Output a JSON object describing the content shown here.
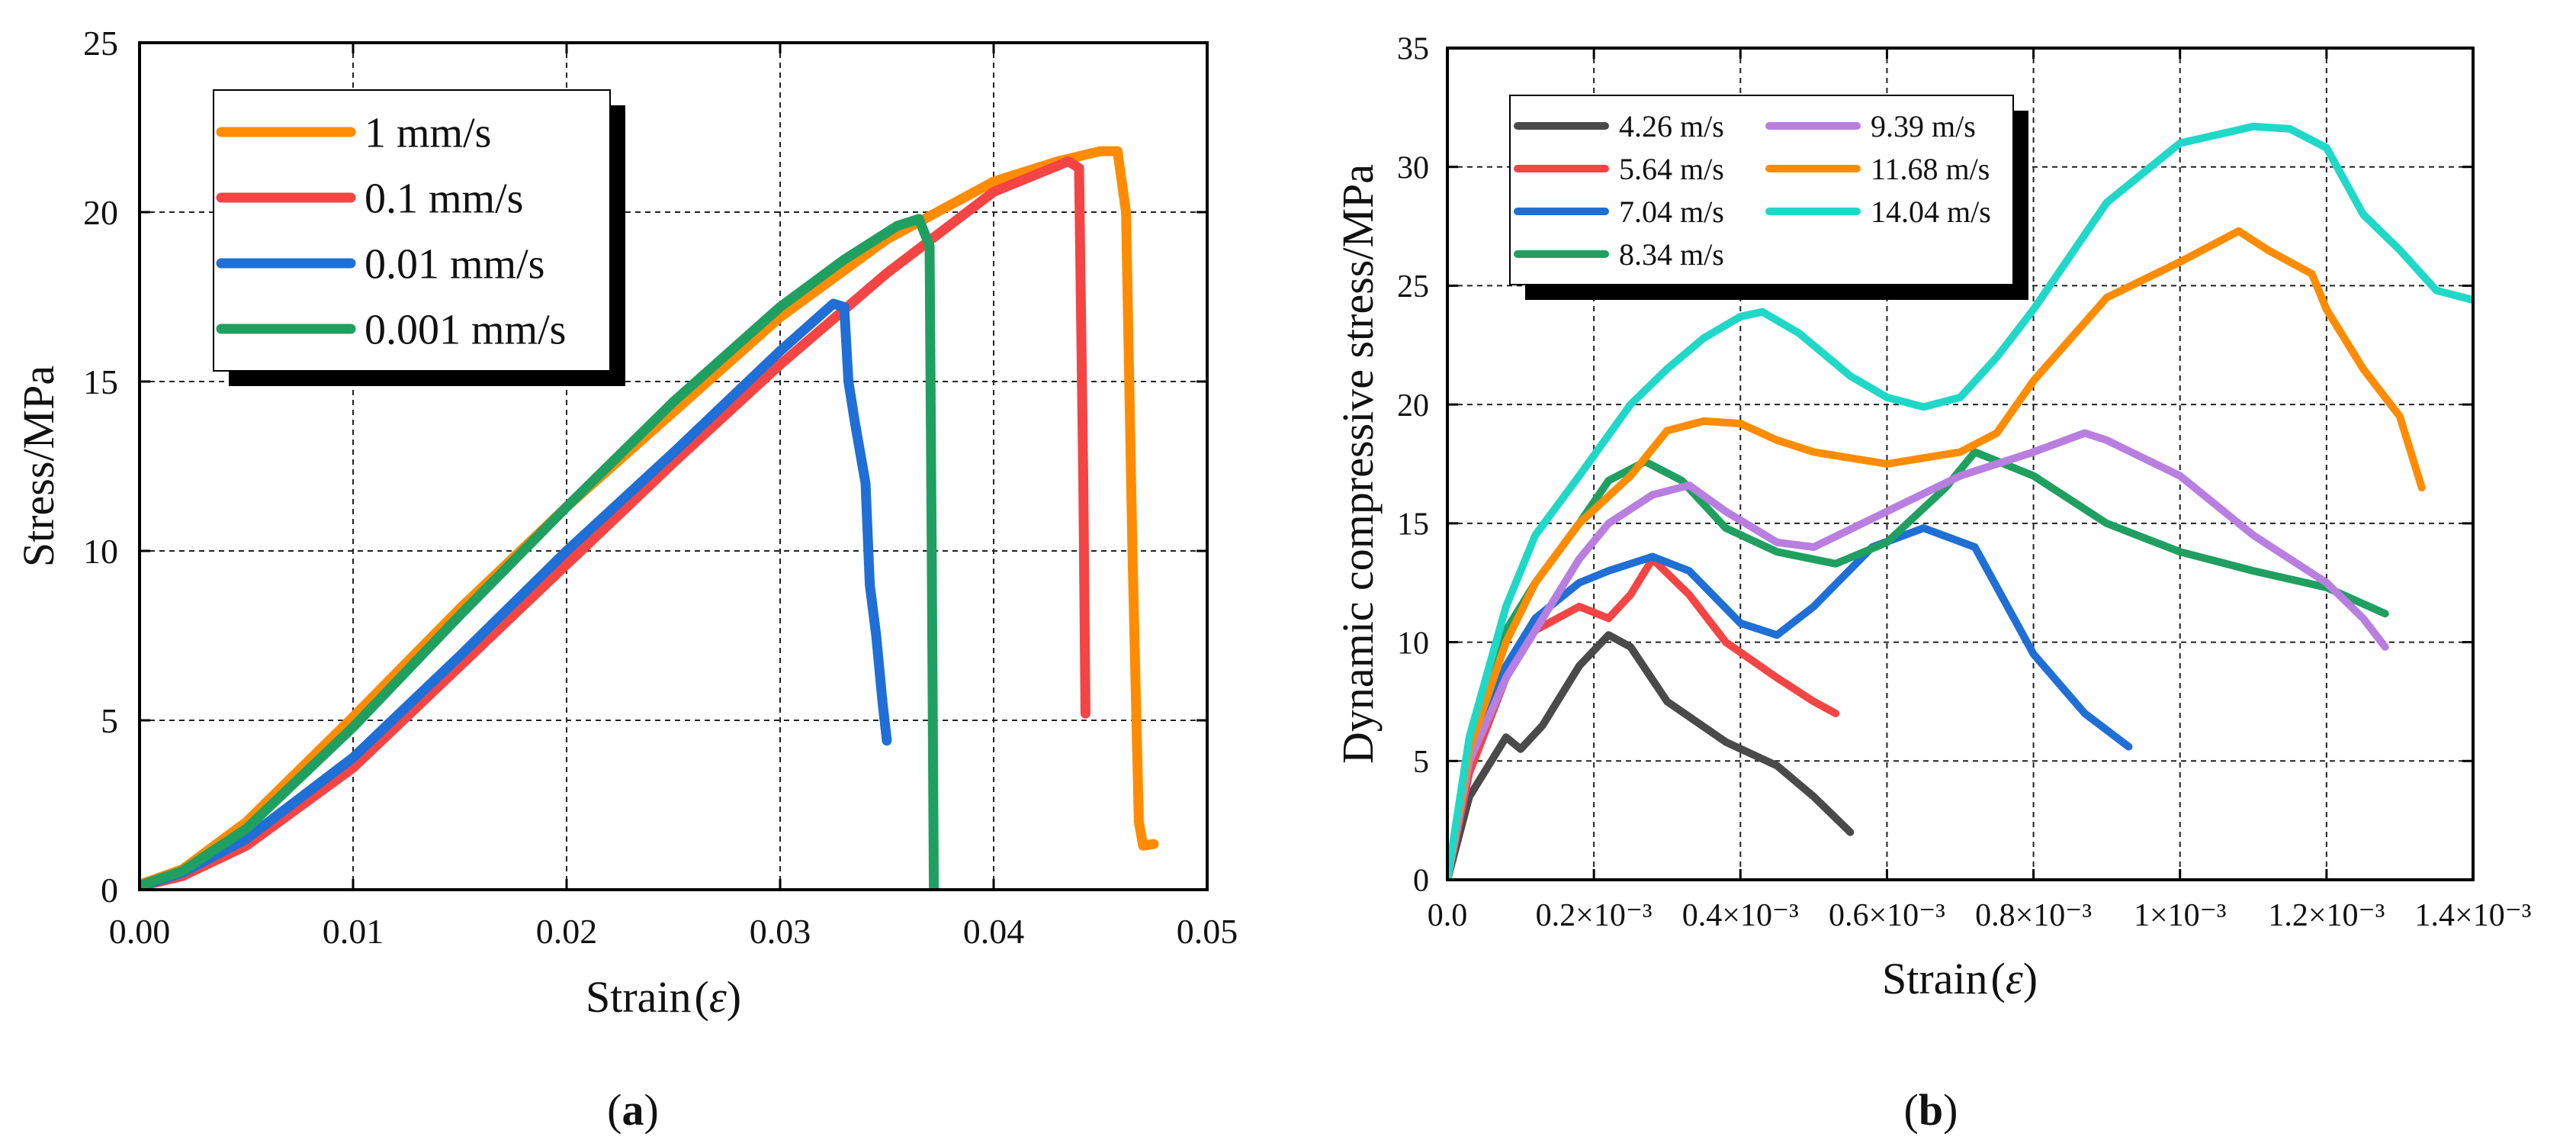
{
  "chart_data": [
    {
      "panel": "a",
      "type": "line",
      "caption_letter": "a",
      "xlabel": "Strain",
      "xlabel_symbol": "ε",
      "ylabel": "Stress/MPa",
      "xlim": [
        0,
        0.05
      ],
      "ylim": [
        0,
        25
      ],
      "xticks": [
        0,
        0.01,
        0.02,
        0.03,
        0.04,
        0.05
      ],
      "xtick_labels": [
        "0.00",
        "0.01",
        "0.02",
        "0.03",
        "0.04",
        "0.05"
      ],
      "yticks": [
        0,
        5,
        10,
        15,
        20,
        25
      ],
      "ytick_labels": [
        "0",
        "5",
        "10",
        "15",
        "20",
        "25"
      ],
      "grid": true,
      "legend_position": "top-left",
      "series": [
        {
          "name": "1 mm/s",
          "color": "#ff8c00",
          "x": [
            0,
            0.002,
            0.005,
            0.01,
            0.015,
            0.02,
            0.025,
            0.03,
            0.035,
            0.04,
            0.043,
            0.045,
            0.0458,
            0.0462,
            0.0465,
            0.0468,
            0.047,
            0.0475
          ],
          "y": [
            0.15,
            0.6,
            2.0,
            5.1,
            8.3,
            11.3,
            14.1,
            16.9,
            19.2,
            20.9,
            21.5,
            21.8,
            21.8,
            20.0,
            10.0,
            2.0,
            1.3,
            1.35
          ]
        },
        {
          "name": "0.1 mm/s",
          "color": "#f54444",
          "x": [
            0,
            0.002,
            0.005,
            0.01,
            0.015,
            0.02,
            0.025,
            0.03,
            0.035,
            0.04,
            0.0435,
            0.044,
            0.0442,
            0.0443
          ],
          "y": [
            0.1,
            0.4,
            1.3,
            3.6,
            6.6,
            9.6,
            12.6,
            15.5,
            18.2,
            20.6,
            21.5,
            21.3,
            12.0,
            5.2
          ]
        },
        {
          "name": "0.01 mm/s",
          "color": "#1f6fd6",
          "x": [
            0,
            0.002,
            0.005,
            0.01,
            0.015,
            0.02,
            0.025,
            0.03,
            0.0325,
            0.033,
            0.0332,
            0.0335,
            0.034,
            0.0342,
            0.0345,
            0.0348,
            0.035
          ],
          "y": [
            0.1,
            0.5,
            1.5,
            3.9,
            6.9,
            10.0,
            12.9,
            15.9,
            17.3,
            17.2,
            15.0,
            13.8,
            12.0,
            9.0,
            7.5,
            5.5,
            4.4
          ]
        },
        {
          "name": "0.001 mm/s",
          "color": "#1fa060",
          "x": [
            0,
            0.002,
            0.005,
            0.01,
            0.015,
            0.02,
            0.025,
            0.03,
            0.033,
            0.0355,
            0.0365,
            0.037,
            0.0371,
            0.0372
          ],
          "y": [
            0.12,
            0.55,
            1.8,
            4.8,
            8.1,
            11.3,
            14.4,
            17.2,
            18.6,
            19.6,
            19.8,
            19.0,
            10.0,
            0
          ]
        }
      ]
    },
    {
      "panel": "b",
      "type": "line",
      "caption_letter": "b",
      "xlabel": "Strain",
      "xlabel_symbol": "ε",
      "ylabel": "Dynamic compressive stress/MPa",
      "xlim": [
        0,
        0.0014
      ],
      "ylim": [
        0,
        35
      ],
      "xticks": [
        0,
        0.0002,
        0.0004,
        0.0006,
        0.0008,
        0.001,
        0.0012,
        0.0014
      ],
      "xtick_labels": [
        "0.0",
        "0.2×10⁻³",
        "0.4×10⁻³",
        "0.6×10⁻³",
        "0.8×10⁻³",
        "1×10⁻³",
        "1.2×10⁻³",
        "1.4×10⁻³"
      ],
      "yticks": [
        0,
        5,
        10,
        15,
        20,
        25,
        30,
        35
      ],
      "ytick_labels": [
        "0",
        "5",
        "10",
        "15",
        "20",
        "25",
        "30",
        "35"
      ],
      "grid": true,
      "legend_position": "top-left",
      "series": [
        {
          "name": "4.26 m/s",
          "color": "#4a4a4a",
          "x": [
            0,
            3e-05,
            8e-05,
            0.0001,
            0.00013,
            0.00018,
            0.00022,
            0.00025,
            0.0003,
            0.00038,
            0.00045,
            0.0005,
            0.00055
          ],
          "y": [
            0,
            3.5,
            6.0,
            5.5,
            6.5,
            9.0,
            10.3,
            9.8,
            7.5,
            5.8,
            4.8,
            3.5,
            2.0
          ]
        },
        {
          "name": "5.64 m/s",
          "color": "#f54444",
          "x": [
            0,
            3e-05,
            8e-05,
            0.00012,
            0.00018,
            0.00022,
            0.00025,
            0.00028,
            0.00033,
            0.00038,
            0.00045,
            0.0005,
            0.00053
          ],
          "y": [
            0,
            4.5,
            8.5,
            10.5,
            11.5,
            11.0,
            12.0,
            13.5,
            12.0,
            10.0,
            8.5,
            7.5,
            7.0
          ]
        },
        {
          "name": "7.04 m/s",
          "color": "#1f6fd6",
          "x": [
            0,
            3e-05,
            8e-05,
            0.00012,
            0.00018,
            0.00022,
            0.00028,
            0.00033,
            0.0004,
            0.00045,
            0.0005,
            0.00058,
            0.00065,
            0.00072,
            0.0008,
            0.00087,
            0.00093
          ],
          "y": [
            0,
            5.0,
            9.0,
            11.0,
            12.5,
            13.0,
            13.6,
            13.0,
            10.8,
            10.3,
            11.5,
            14.0,
            14.8,
            14.0,
            9.5,
            7.0,
            5.6
          ]
        },
        {
          "name": "8.34 m/s",
          "color": "#1fa060",
          "x": [
            0,
            3e-05,
            8e-05,
            0.00012,
            0.00018,
            0.00022,
            0.00027,
            0.00032,
            0.00038,
            0.00045,
            0.00053,
            0.0006,
            0.00068,
            0.00072,
            0.0008,
            0.0009,
            0.001,
            0.0011,
            0.0012,
            0.00128
          ],
          "y": [
            0,
            5.5,
            10.5,
            12.5,
            15.0,
            16.8,
            17.6,
            16.8,
            14.8,
            13.8,
            13.3,
            14.2,
            16.5,
            18.0,
            17.0,
            15.0,
            13.8,
            13.0,
            12.3,
            11.2
          ]
        },
        {
          "name": "9.39 m/s",
          "color": "#b87fe0",
          "x": [
            0,
            3e-05,
            8e-05,
            0.00012,
            0.00018,
            0.00022,
            0.00028,
            0.00033,
            0.00038,
            0.00045,
            0.0005,
            0.0006,
            0.0007,
            0.0008,
            0.00087,
            0.0009,
            0.001,
            0.0011,
            0.0012,
            0.00125,
            0.00128
          ],
          "y": [
            0,
            5.0,
            8.5,
            10.5,
            13.5,
            15.0,
            16.2,
            16.6,
            15.5,
            14.2,
            14.0,
            15.5,
            17.0,
            18.0,
            18.8,
            18.5,
            17.0,
            14.5,
            12.5,
            11.0,
            9.8
          ]
        },
        {
          "name": "11.68 m/s",
          "color": "#ff8c00",
          "x": [
            0,
            3e-05,
            8e-05,
            0.00012,
            0.00018,
            0.00025,
            0.0003,
            0.00035,
            0.0004,
            0.00045,
            0.0005,
            0.0006,
            0.0007,
            0.00075,
            0.0008,
            0.0009,
            0.001,
            0.00108,
            0.00112,
            0.00118,
            0.0012,
            0.00125,
            0.0013,
            0.00133
          ],
          "y": [
            0,
            5.5,
            10.0,
            12.5,
            15.0,
            17.0,
            18.9,
            19.3,
            19.2,
            18.5,
            18.0,
            17.5,
            18.0,
            18.8,
            21.0,
            24.5,
            26.0,
            27.3,
            26.5,
            25.5,
            24.0,
            21.5,
            19.5,
            16.5
          ]
        },
        {
          "name": "14.04 m/s",
          "color": "#1fd8c8",
          "x": [
            0,
            3e-05,
            8e-05,
            0.00012,
            0.00018,
            0.00025,
            0.0003,
            0.00035,
            0.0004,
            0.00043,
            0.00048,
            0.00055,
            0.0006,
            0.00065,
            0.0007,
            0.00075,
            0.0008,
            0.0009,
            0.001,
            0.0011,
            0.00115,
            0.0012,
            0.00125,
            0.0013,
            0.00135,
            0.0014
          ],
          "y": [
            0,
            6.0,
            11.5,
            14.5,
            17.0,
            20.0,
            21.5,
            22.8,
            23.7,
            23.9,
            23.0,
            21.2,
            20.3,
            19.9,
            20.3,
            22.0,
            24.0,
            28.5,
            31.0,
            31.7,
            31.6,
            30.8,
            28.0,
            26.5,
            24.8,
            24.4
          ]
        }
      ]
    }
  ]
}
